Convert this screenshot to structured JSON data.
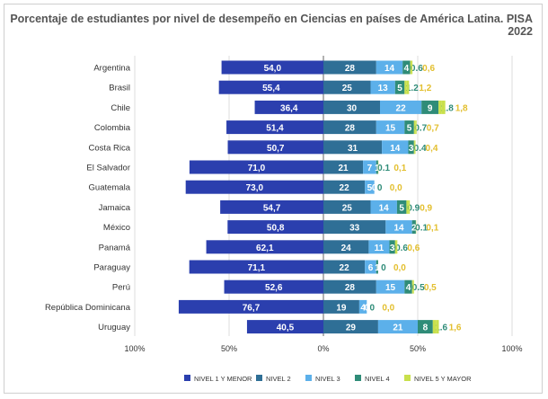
{
  "chart_data": {
    "type": "bar",
    "orientation": "horizontal",
    "stacked": "diverging",
    "title": "Porcentaje de estudiantes por nivel de desempeño en Ciencias en países de América Latina. PISA 2022",
    "categories": [
      "Argentina",
      "Brasil",
      "Chile",
      "Colombia",
      "Costa Rica",
      "El Salvador",
      "Guatemala",
      "Jamaica",
      "México",
      "Panamá",
      "Paraguay",
      "Perú",
      "República Dominicana",
      "Uruguay"
    ],
    "series": [
      {
        "name": "NIVEL 1 Y MENOR",
        "color": "#2b3fae",
        "labels": [
          "54,0",
          "55,4",
          "36,4",
          "51,4",
          "50,7",
          "71,0",
          "73,0",
          "54,7",
          "50,8",
          "62,1",
          "71,1",
          "52,6",
          "76,7",
          "40,5"
        ],
        "values": [
          54.0,
          55.4,
          36.4,
          51.4,
          50.7,
          71.0,
          73.0,
          54.7,
          50.8,
          62.1,
          71.1,
          52.6,
          76.7,
          40.5
        ]
      },
      {
        "name": "NIVEL 2",
        "color": "#2f6f96",
        "values": [
          28,
          25,
          30,
          28,
          31,
          21,
          22,
          25,
          33,
          24,
          22,
          28,
          19,
          29
        ]
      },
      {
        "name": "NIVEL 3",
        "color": "#5cb0ea",
        "values": [
          14,
          13,
          22,
          15,
          14,
          7,
          5,
          14,
          14,
          11,
          6,
          15,
          4,
          21
        ]
      },
      {
        "name": "NIVEL 4",
        "color": "#2f8c78",
        "values": [
          4,
          5,
          9,
          5,
          3,
          1,
          0,
          5,
          2,
          3,
          1,
          4,
          0,
          8
        ]
      },
      {
        "name": "NIVEL 5 Y MAYOR",
        "color": "#c9e04c",
        "label_color": "#e3bf2e",
        "labels": [
          "0,6",
          "1,2",
          "1,8",
          "0,7",
          "0,4",
          "0,1",
          "0,0",
          "0,9",
          "0,1",
          "0,6",
          "0,0",
          "0,5",
          "0,0",
          "1,6"
        ],
        "values": [
          0.6,
          1.2,
          1.8,
          0.7,
          0.4,
          0.1,
          0.0,
          0.9,
          0.1,
          0.6,
          0.0,
          0.5,
          0.0,
          1.6
        ]
      }
    ],
    "xlim": [
      -100,
      100
    ],
    "tick_labels": [
      "100%",
      "50%",
      "0%",
      "50%",
      "100%"
    ],
    "grid": true,
    "legend": "bottom"
  }
}
